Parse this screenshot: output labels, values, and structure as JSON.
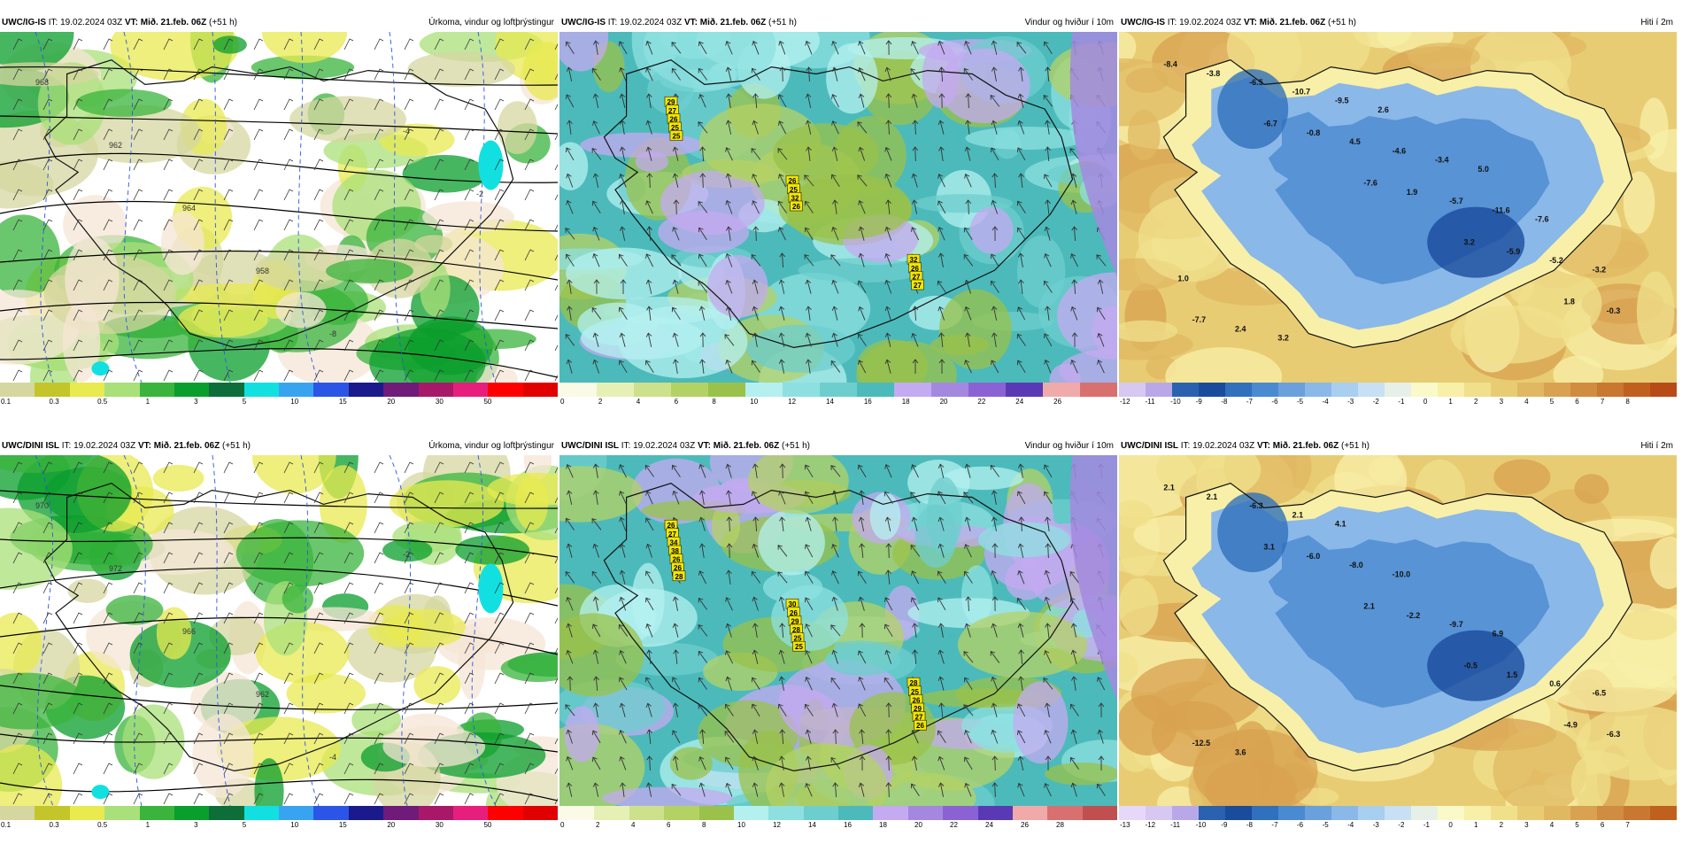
{
  "panels": [
    {
      "model": "UWC/IG-IS",
      "it_label": "IT:",
      "it_value": "19.02.2024 03Z",
      "vt_label": "VT:",
      "vt_value": "Mið. 21.feb. 06Z",
      "lead": "(+51 h)",
      "title": "Úrkoma, vindur og loftþrýstingur",
      "colorbar": {
        "colors": [
          "#d6d7a0",
          "#c3c52a",
          "#e8ea50",
          "#a9e07a",
          "#3ab43c",
          "#0a9e2c",
          "#0d6e3a",
          "#12e0e0",
          "#38a4f0",
          "#2b55e6",
          "#1a1a8c",
          "#701a7a",
          "#a81868",
          "#e81e7c",
          "#ff0000",
          "#e00000"
        ],
        "ticks": [
          "0.1",
          "0.3",
          "0.5",
          "1",
          "3",
          "5",
          "10",
          "15",
          "20",
          "30",
          "50"
        ]
      },
      "labels": [
        {
          "text": "968"
        },
        {
          "text": "962"
        },
        {
          "text": "964"
        },
        {
          "text": "958"
        },
        {
          "text": "-8"
        },
        {
          "text": "-4"
        },
        {
          "text": "-2"
        }
      ]
    },
    {
      "model": "UWC/IG-IS",
      "it_label": "IT:",
      "it_value": "19.02.2024 03Z",
      "vt_label": "VT:",
      "vt_value": "Mið. 21.feb. 06Z",
      "lead": "(+51 h)",
      "title": "Vindur og hviður í 10m",
      "colorbar": {
        "colors": [
          "#fafae6",
          "#e6f0b4",
          "#cde08c",
          "#b4d264",
          "#9ac24a",
          "#b4f0f0",
          "#8ee0e0",
          "#6ecece",
          "#4cbaba",
          "#c4aaf0",
          "#a488e0",
          "#8a62d4",
          "#5a3ab4",
          "#f0aaaa",
          "#d87070"
        ],
        "ticks": [
          "0",
          "2",
          "4",
          "6",
          "8",
          "10",
          "12",
          "14",
          "16",
          "18",
          "20",
          "22",
          "24",
          "26"
        ]
      },
      "gust_labels": [
        "29",
        "26",
        "32",
        "27",
        "25",
        "26",
        "26",
        "32",
        "27",
        "25",
        "26",
        "27",
        "25"
      ]
    },
    {
      "model": "UWC/IG-IS",
      "it_label": "IT:",
      "it_value": "19.02.2024 03Z",
      "vt_label": "VT:",
      "vt_value": "Mið. 21.feb. 06Z",
      "lead": "(+51 h)",
      "title": "Hiti í 2m",
      "colorbar": {
        "colors": [
          "#d6c8f0",
          "#b8a8e8",
          "#2a62b0",
          "#1a4c9c",
          "#3070bc",
          "#4a8ad0",
          "#6aa0dc",
          "#8ab8e8",
          "#a8cef0",
          "#c8e0f4",
          "#e6f0e8",
          "#fafac8",
          "#f8f0a8",
          "#f0e08c",
          "#e8cc74",
          "#e0b862",
          "#d8a250",
          "#d08c40",
          "#c87830",
          "#c06020",
          "#b84a18"
        ],
        "ticks": [
          "-12",
          "-11",
          "-10",
          "-9",
          "-8",
          "-7",
          "-6",
          "-5",
          "-4",
          "-3",
          "-2",
          "-1",
          "0",
          "1",
          "2",
          "3",
          "4",
          "5",
          "6",
          "7",
          "8"
        ]
      },
      "temp_labels": [
        "-8.4",
        "-6.7",
        "-7.6",
        "3.2",
        "1.8",
        "-3.8",
        "-0.8",
        "1.9",
        "-5.9",
        "-0.3",
        "-6.5",
        "4.5",
        "-5.7",
        "-5.2",
        "-7.7",
        "-10.7",
        "-4.6",
        "-11.6",
        "-3.2",
        "2.4",
        "-9.5",
        "-3.4",
        "-7.6",
        "1.0",
        "3.2",
        "2.6",
        "5.0"
      ]
    },
    {
      "model": "UWC/DINI ISL",
      "it_label": "IT:",
      "it_value": "19.02.2024 03Z",
      "vt_label": "VT:",
      "vt_value": "Mið. 21.feb. 06Z",
      "lead": "(+51 h)",
      "title": "Úrkoma, vindur og loftþrýstingur",
      "colorbar": {
        "colors": [
          "#d6d7a0",
          "#c3c52a",
          "#e8ea50",
          "#a9e07a",
          "#3ab43c",
          "#0a9e2c",
          "#0d6e3a",
          "#12e0e0",
          "#38a4f0",
          "#2b55e6",
          "#1a1a8c",
          "#701a7a",
          "#a81868",
          "#e81e7c",
          "#ff0000",
          "#e00000"
        ],
        "ticks": [
          "0.1",
          "0.3",
          "0.5",
          "1",
          "3",
          "5",
          "10",
          "15",
          "20",
          "30",
          "50"
        ]
      },
      "labels": [
        {
          "text": "970"
        },
        {
          "text": "972"
        },
        {
          "text": "966"
        },
        {
          "text": "962"
        },
        {
          "text": "-4"
        },
        {
          "text": "-2"
        }
      ]
    },
    {
      "model": "UWC/DINI ISL",
      "it_label": "IT:",
      "it_value": "19.02.2024 03Z",
      "vt_label": "VT:",
      "vt_value": "Mið. 21.feb. 06Z",
      "lead": "(+51 h)",
      "title": "Vindur og hviður í 10m",
      "colorbar": {
        "colors": [
          "#fafae6",
          "#e6f0b4",
          "#cde08c",
          "#b4d264",
          "#9ac24a",
          "#b4f0f0",
          "#8ee0e0",
          "#6ecece",
          "#4cbaba",
          "#c4aaf0",
          "#a488e0",
          "#8a62d4",
          "#5a3ab4",
          "#f0aaaa",
          "#d87070",
          "#c05050"
        ],
        "ticks": [
          "0",
          "2",
          "4",
          "6",
          "8",
          "10",
          "12",
          "14",
          "16",
          "18",
          "20",
          "22",
          "24",
          "26",
          "28"
        ]
      },
      "gust_labels": [
        "26",
        "30",
        "28",
        "27",
        "26",
        "25",
        "34",
        "29",
        "26",
        "38",
        "28",
        "29",
        "26",
        "25",
        "27",
        "26",
        "25",
        "26",
        "28"
      ]
    },
    {
      "model": "UWC/DINI ISL",
      "it_label": "IT:",
      "it_value": "19.02.2024 03Z",
      "vt_label": "VT:",
      "vt_value": "Mið. 21.feb. 06Z",
      "lead": "(+51 h)",
      "title": "Hiti í 2m",
      "colorbar": {
        "colors": [
          "#e6d8f8",
          "#d6c8f0",
          "#b8a8e8",
          "#2a62b0",
          "#1a4c9c",
          "#3070bc",
          "#4a8ad0",
          "#6aa0dc",
          "#8ab8e8",
          "#a8cef0",
          "#c8e0f4",
          "#e6f0e8",
          "#fafac8",
          "#f8f0a8",
          "#f0e08c",
          "#e8cc74",
          "#e0b862",
          "#d8a250",
          "#d08c40",
          "#c87830",
          "#c06020"
        ],
        "ticks": [
          "-13",
          "-12",
          "-11",
          "-10",
          "-9",
          "-8",
          "-7",
          "-6",
          "-5",
          "-4",
          "-3",
          "-2",
          "-1",
          "0",
          "1",
          "2",
          "3",
          "4",
          "5",
          "6",
          "7"
        ]
      },
      "temp_labels": [
        "2.1",
        "3.1",
        "2.1",
        "-0.5",
        "-4.9",
        "2.1",
        "-6.0",
        "-2.2",
        "1.5",
        "-6.3",
        "-6.3",
        "-8.0",
        "-9.7",
        "0.6",
        "-12.5",
        "2.1",
        "-10.0",
        "6.9",
        "-6.5",
        "3.6",
        "4.1"
      ]
    }
  ]
}
